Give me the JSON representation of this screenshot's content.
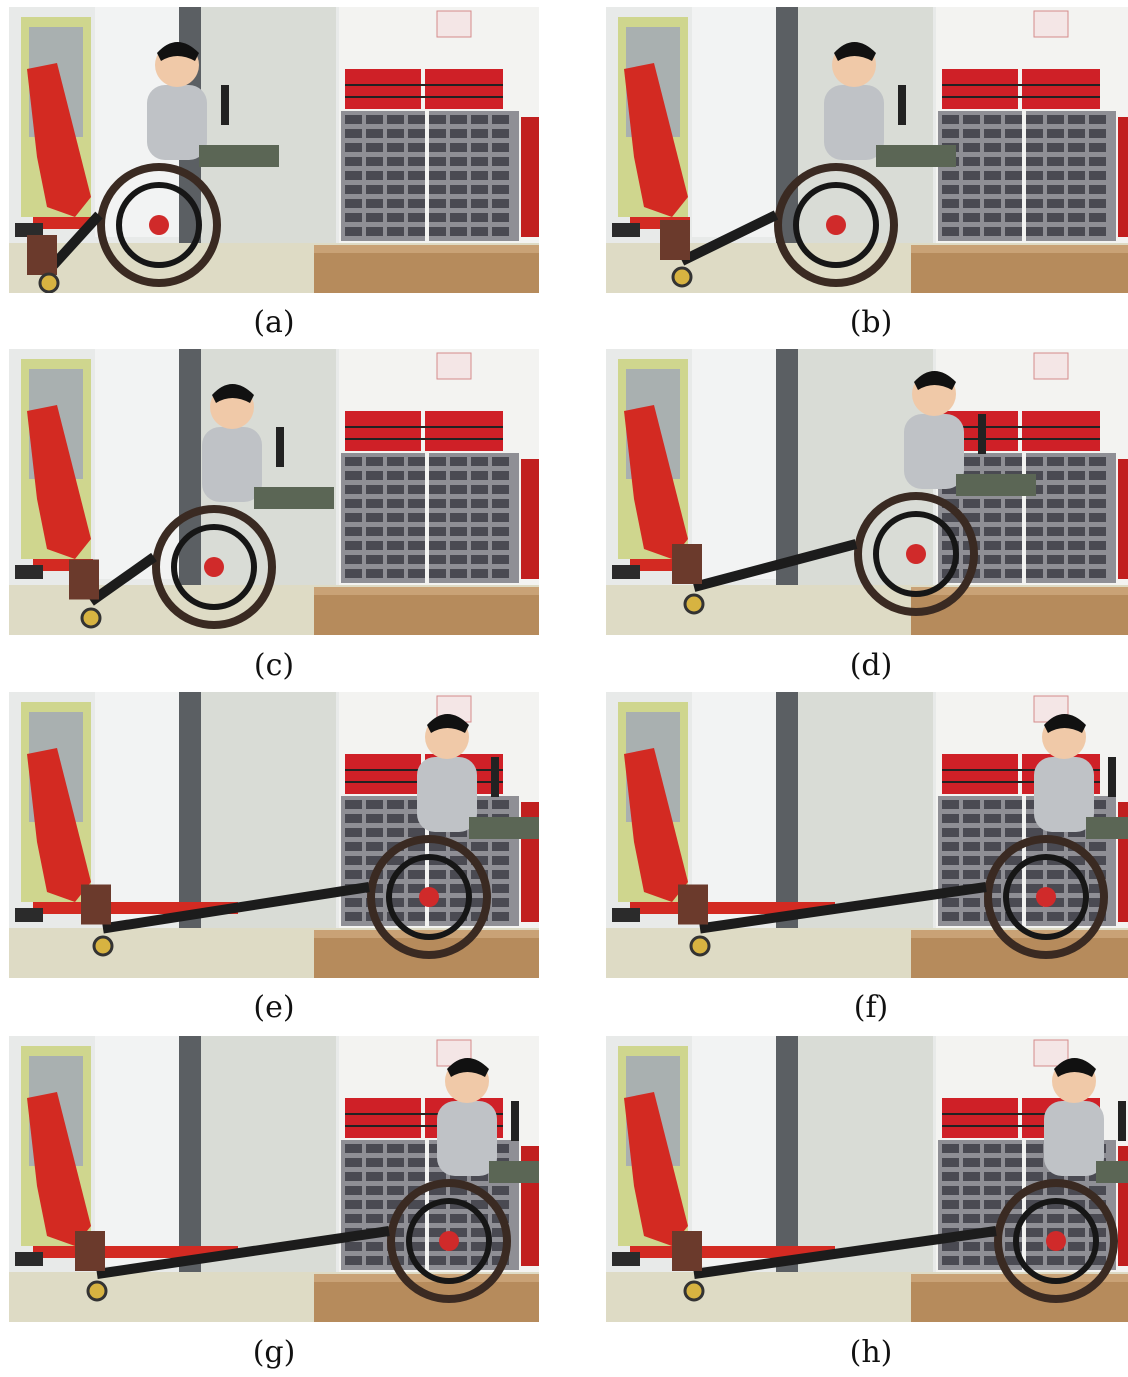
{
  "panels": [
    {
      "id": "a",
      "caption": "(a)",
      "chair_x": 150,
      "on_ramp": false,
      "frame_tilt": 0
    },
    {
      "id": "b",
      "caption": "(b)",
      "chair_x": 230,
      "on_ramp": false,
      "frame_tilt": 30
    },
    {
      "id": "c",
      "caption": "(c)",
      "chair_x": 205,
      "on_ramp": false,
      "frame_tilt": 35
    },
    {
      "id": "d",
      "caption": "(d)",
      "chair_x": 310,
      "on_ramp": true,
      "frame_tilt": 40
    },
    {
      "id": "e",
      "caption": "(e)",
      "chair_x": 420,
      "on_ramp": true,
      "frame_tilt": 45
    },
    {
      "id": "f",
      "caption": "(f)",
      "chair_x": 440,
      "on_ramp": true,
      "frame_tilt": 45
    },
    {
      "id": "g",
      "caption": "(g)",
      "chair_x": 440,
      "on_ramp": true,
      "frame_tilt": 40
    },
    {
      "id": "h",
      "caption": "(h)",
      "chair_x": 450,
      "on_ramp": true,
      "frame_tilt": 40
    }
  ],
  "colors": {
    "wall": "#e8eae9",
    "door": "#d9dcd6",
    "panel_green": "#cfd68e",
    "floor": "#dedbc5",
    "ramp": "#b68b5c",
    "lift_red": "#d32a22",
    "cabinet_red": "#cf2027",
    "drawers": "#8f8f95",
    "wheel": "#3a2a22",
    "shirt": "#bfc2c6",
    "pants": "#5b6655"
  }
}
